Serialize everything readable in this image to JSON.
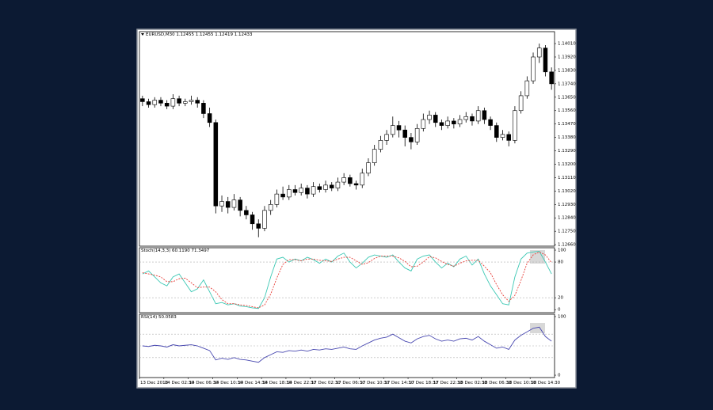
{
  "chart_data": [
    {
      "type": "candlestick",
      "title": "EURUSD,M30 1.12455 1.12455 1.12419 1.12433",
      "categories": [
        "13 Dec 2018",
        null,
        null,
        null,
        "14 Dec 02:30",
        null,
        null,
        null,
        "14 Dec 06:30",
        null,
        null,
        null,
        "14 Dec 10:30",
        null,
        null,
        null,
        "14 Dec 14:30",
        null,
        null,
        null,
        "14 Dec 18:30",
        null,
        null,
        null,
        "14 Dec 22:30",
        null,
        null,
        null,
        "17 Dec 02:30",
        null,
        null,
        null,
        "17 Dec 06:30",
        null,
        null,
        null,
        "17 Dec 10:30",
        null,
        null,
        null,
        "17 Dec 14:30",
        null,
        null,
        null,
        "17 Dec 18:30",
        null,
        null,
        null,
        "17 Dec 22:30",
        null,
        null,
        null,
        "18 Dec 02:30",
        null,
        null,
        null,
        "18 Dec 06:30",
        null,
        null,
        null,
        "18 Dec 10:30",
        null,
        null,
        null,
        "18 Dec 14:30",
        null,
        null,
        null
      ],
      "open": [
        1.1364,
        1.1362,
        1.136,
        1.1363,
        1.1361,
        1.1359,
        1.1364,
        1.1361,
        1.1362,
        1.1363,
        1.1361,
        1.1354,
        1.1348,
        1.1292,
        1.1295,
        1.1291,
        1.1296,
        1.1289,
        1.1286,
        1.128,
        1.1277,
        1.1289,
        1.1293,
        1.13,
        1.1298,
        1.1303,
        1.1301,
        1.1304,
        1.13,
        1.1305,
        1.1303,
        1.1306,
        1.1304,
        1.1308,
        1.1311,
        1.1307,
        1.1306,
        1.1314,
        1.1321,
        1.133,
        1.1336,
        1.134,
        1.1346,
        1.1343,
        1.1338,
        1.1335,
        1.1344,
        1.135,
        1.1353,
        1.1348,
        1.1346,
        1.1349,
        1.1347,
        1.135,
        1.1352,
        1.1349,
        1.1356,
        1.135,
        1.1346,
        1.1338,
        1.134,
        1.1336,
        1.1356,
        1.1366,
        1.1376,
        1.1392,
        1.1398,
        1.1382
      ],
      "high": [
        1.1366,
        1.1364,
        1.1365,
        1.1365,
        1.1363,
        1.1367,
        1.1366,
        1.1364,
        1.1366,
        1.1365,
        1.1363,
        1.1358,
        1.135,
        1.1299,
        1.1298,
        1.13,
        1.1298,
        1.1292,
        1.1288,
        1.1283,
        1.1292,
        1.1296,
        1.1303,
        1.1305,
        1.1306,
        1.1306,
        1.1307,
        1.1306,
        1.1308,
        1.1307,
        1.1309,
        1.1308,
        1.1311,
        1.1314,
        1.1313,
        1.1309,
        1.1317,
        1.1324,
        1.1333,
        1.1339,
        1.1343,
        1.1352,
        1.1349,
        1.1346,
        1.1341,
        1.1347,
        1.1354,
        1.1356,
        1.1355,
        1.135,
        1.1352,
        1.1351,
        1.1353,
        1.1355,
        1.1354,
        1.1359,
        1.1358,
        1.1352,
        1.1348,
        1.1343,
        1.1342,
        1.1359,
        1.1369,
        1.1379,
        1.1395,
        1.1401,
        1.14,
        1.1385
      ],
      "low": [
        1.1359,
        1.1358,
        1.1358,
        1.1359,
        1.1357,
        1.1357,
        1.1359,
        1.1359,
        1.136,
        1.1358,
        1.1351,
        1.1345,
        1.1287,
        1.1288,
        1.1287,
        1.1289,
        1.1285,
        1.1283,
        1.1276,
        1.1271,
        1.1275,
        1.1286,
        1.1291,
        1.1296,
        1.1296,
        1.1299,
        1.1299,
        1.1297,
        1.1298,
        1.1301,
        1.1301,
        1.1302,
        1.1302,
        1.1306,
        1.1305,
        1.1303,
        1.1304,
        1.1312,
        1.1319,
        1.1328,
        1.1333,
        1.1338,
        1.1338,
        1.1332,
        1.133,
        1.1333,
        1.1342,
        1.1347,
        1.1345,
        1.1343,
        1.1344,
        1.1344,
        1.1345,
        1.1348,
        1.1346,
        1.1347,
        1.1347,
        1.1343,
        1.1335,
        1.1336,
        1.1332,
        1.1334,
        1.1354,
        1.1364,
        1.1374,
        1.1388,
        1.1379,
        1.137
      ],
      "close": [
        1.1362,
        1.136,
        1.1363,
        1.1361,
        1.1359,
        1.1364,
        1.1361,
        1.1362,
        1.1363,
        1.1361,
        1.1354,
        1.1348,
        1.1292,
        1.1295,
        1.1291,
        1.1296,
        1.1289,
        1.1286,
        1.128,
        1.1277,
        1.1289,
        1.1293,
        1.13,
        1.1298,
        1.1303,
        1.1301,
        1.1304,
        1.13,
        1.1305,
        1.1303,
        1.1306,
        1.1304,
        1.1308,
        1.1311,
        1.1307,
        1.1306,
        1.1314,
        1.1321,
        1.133,
        1.1336,
        1.134,
        1.1346,
        1.1343,
        1.1338,
        1.1335,
        1.1344,
        1.135,
        1.1353,
        1.1348,
        1.1346,
        1.1349,
        1.1347,
        1.135,
        1.1352,
        1.1349,
        1.1356,
        1.135,
        1.1346,
        1.1338,
        1.134,
        1.1336,
        1.1356,
        1.1366,
        1.1376,
        1.1392,
        1.1398,
        1.1382,
        1.1374
      ],
      "up_color": "#ffffff",
      "down_color": "#000000",
      "color": "#000000",
      "ylim": [
        1.1265,
        1.1409
      ],
      "yticks": [
        {
          "value": 1.1266,
          "label": "1.12660"
        },
        {
          "value": 1.1275,
          "label": "1.12750"
        },
        {
          "value": 1.1284,
          "label": "1.12840"
        },
        {
          "value": 1.1293,
          "label": "1.12930"
        },
        {
          "value": 1.1302,
          "label": "1.13020"
        },
        {
          "value": 1.1311,
          "label": "1.13110"
        },
        {
          "value": 1.132,
          "label": "1.13200"
        },
        {
          "value": 1.1329,
          "label": "1.13290"
        },
        {
          "value": 1.1338,
          "label": "1.13380"
        },
        {
          "value": 1.1347,
          "label": "1.13470"
        },
        {
          "value": 1.1356,
          "label": "1.13560"
        },
        {
          "value": 1.1365,
          "label": "1.13650"
        },
        {
          "value": 1.1374,
          "label": "1.13740"
        },
        {
          "value": 1.1383,
          "label": "1.13830"
        },
        {
          "value": 1.1392,
          "label": "1.13920"
        },
        {
          "value": 1.1401,
          "label": "1.14010"
        }
      ]
    },
    {
      "type": "line",
      "title": "Stoch(14,3,3) 60.1190 71.3497",
      "series": [
        {
          "color": "#3cc8b4",
          "style": "solid",
          "values": [
            60,
            65,
            55,
            45,
            40,
            55,
            60,
            45,
            30,
            35,
            50,
            30,
            10,
            12,
            8,
            10,
            6,
            5,
            3,
            2,
            20,
            55,
            85,
            88,
            80,
            85,
            82,
            88,
            84,
            78,
            85,
            80,
            90,
            95,
            80,
            70,
            78,
            88,
            92,
            90,
            88,
            92,
            80,
            70,
            65,
            85,
            90,
            92,
            80,
            70,
            78,
            72,
            85,
            90,
            75,
            85,
            60,
            40,
            25,
            10,
            8,
            55,
            85,
            95,
            97,
            98,
            80,
            60
          ]
        },
        {
          "color": "#e8403a",
          "style": "dashed",
          "values": [
            62,
            60,
            58,
            55,
            47,
            47,
            52,
            53,
            45,
            37,
            38,
            38,
            30,
            17,
            10,
            10,
            8,
            7,
            5,
            3,
            8,
            26,
            53,
            76,
            84,
            84,
            82,
            85,
            85,
            83,
            82,
            81,
            85,
            88,
            88,
            82,
            76,
            79,
            86,
            90,
            90,
            90,
            87,
            81,
            72,
            73,
            80,
            89,
            87,
            81,
            76,
            73,
            78,
            82,
            83,
            83,
            73,
            62,
            42,
            25,
            14,
            24,
            49,
            78,
            92,
            97,
            92,
            79
          ]
        }
      ],
      "levels": [
        80,
        20
      ],
      "level_color": "#b0b0b0",
      "ylim": [
        -5,
        104
      ],
      "yticks": [
        100,
        80,
        20,
        0
      ]
    },
    {
      "type": "line",
      "title": "RSI(14) 50.0583",
      "series": [
        {
          "color": "#4848b0",
          "style": "solid",
          "values": [
            50,
            49,
            51,
            50,
            48,
            52,
            50,
            51,
            52,
            50,
            46,
            42,
            26,
            29,
            27,
            30,
            27,
            26,
            24,
            22,
            30,
            35,
            40,
            39,
            42,
            41,
            43,
            41,
            44,
            43,
            45,
            44,
            46,
            48,
            45,
            44,
            50,
            55,
            60,
            63,
            65,
            70,
            64,
            58,
            55,
            62,
            66,
            68,
            62,
            58,
            60,
            58,
            62,
            63,
            60,
            66,
            58,
            52,
            46,
            48,
            44,
            60,
            68,
            74,
            80,
            82,
            66,
            58
          ]
        }
      ],
      "levels": [
        70,
        50,
        30
      ],
      "level_color": "#b0b0b0",
      "ylim": [
        -4,
        104
      ],
      "yticks": [
        100,
        0
      ]
    }
  ]
}
